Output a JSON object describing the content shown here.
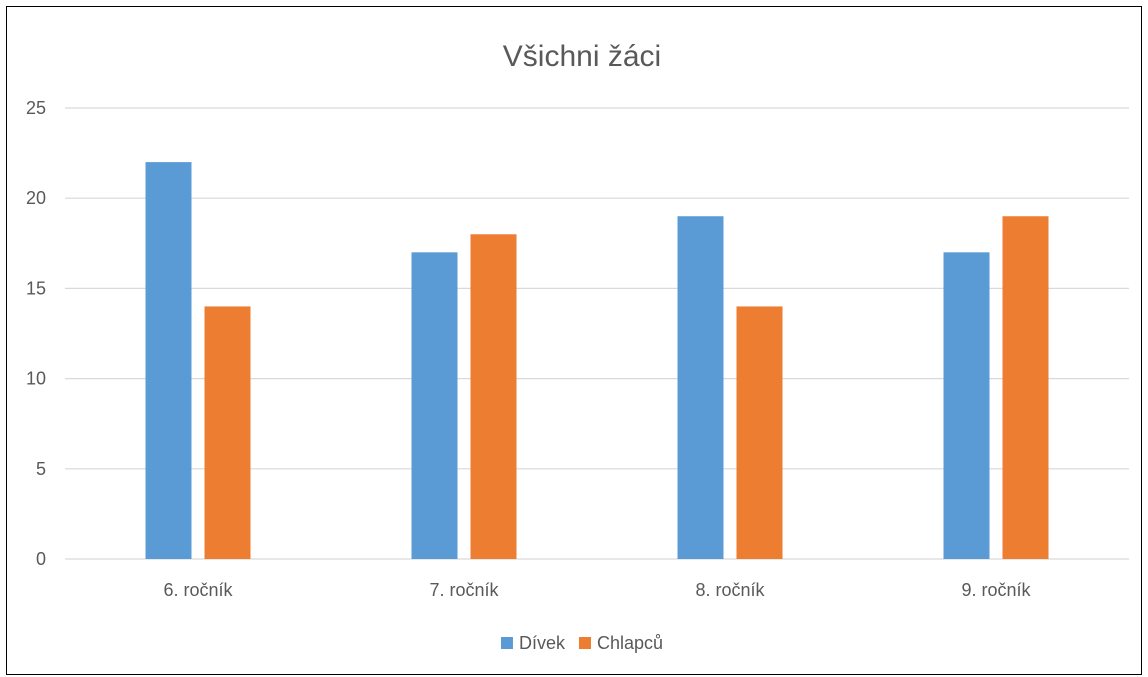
{
  "chart_data": {
    "type": "bar",
    "title": "Všichni žáci",
    "xlabel": "",
    "ylabel": "",
    "categories": [
      "6. ročník",
      "7. ročník",
      "8. ročník",
      "9. ročník"
    ],
    "series": [
      {
        "name": "Dívek",
        "values": [
          22,
          17,
          19,
          17
        ],
        "color": "#5B9BD5"
      },
      {
        "name": "Chlapců",
        "values": [
          14,
          18,
          14,
          19
        ],
        "color": "#ED7D31"
      }
    ],
    "ylim": [
      0,
      25
    ],
    "yticks": [
      0,
      5,
      10,
      15,
      20,
      25
    ],
    "grid": true,
    "gridColor": "#D9D9D9",
    "legend": "bottom"
  }
}
